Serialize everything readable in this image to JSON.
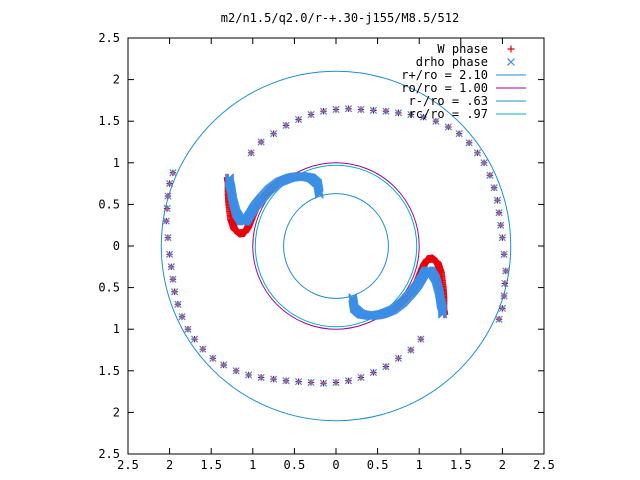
{
  "chart_data": {
    "type": "scatter",
    "title": "m2/n1.5/q2.0/r-+.30-j155/M8.5/512",
    "xlabel": "",
    "ylabel": "",
    "xlim": [
      -2.5,
      2.5
    ],
    "ylim": [
      -2.5,
      2.5
    ],
    "grid": false,
    "legend_position": "top-right",
    "x_tick_labels": [
      "2.5",
      "2",
      "1.5",
      "1",
      "0.5",
      "0",
      "0.5",
      "1",
      "1.5",
      "2",
      "2.5"
    ],
    "y_tick_labels": [
      "2.5",
      "2",
      "1.5",
      "1",
      "0.5",
      "0",
      "0.5",
      "1",
      "1.5",
      "2",
      "2.5"
    ],
    "series": [
      {
        "name": "W phase",
        "marker": "plus",
        "color": "#e8000b",
        "points": [
          [
            -1.96,
            0.88
          ],
          [
            -2.0,
            0.75
          ],
          [
            -2.02,
            0.6
          ],
          [
            -2.03,
            0.45
          ],
          [
            -2.04,
            0.3
          ],
          [
            -2.02,
            0.1
          ],
          [
            -2.0,
            -0.1
          ],
          [
            -1.98,
            -0.25
          ],
          [
            -1.96,
            -0.4
          ],
          [
            -1.94,
            -0.55
          ],
          [
            -1.9,
            -0.7
          ],
          [
            -1.85,
            -0.85
          ],
          [
            -1.78,
            -1.0
          ],
          [
            -1.7,
            -1.12
          ],
          [
            -1.6,
            -1.24
          ],
          [
            -1.48,
            -1.35
          ],
          [
            -1.35,
            -1.43
          ],
          [
            -1.2,
            -1.5
          ],
          [
            -1.05,
            -1.55
          ],
          [
            -0.9,
            -1.58
          ],
          [
            -0.75,
            -1.6
          ],
          [
            -0.6,
            -1.62
          ],
          [
            -0.45,
            -1.63
          ],
          [
            -0.3,
            -1.64
          ],
          [
            -0.15,
            -1.65
          ],
          [
            0.0,
            -1.64
          ],
          [
            0.15,
            -1.62
          ],
          [
            0.3,
            -1.58
          ],
          [
            0.45,
            -1.52
          ],
          [
            0.6,
            -1.45
          ],
          [
            0.75,
            -1.35
          ],
          [
            0.9,
            -1.25
          ],
          [
            1.02,
            -1.12
          ],
          [
            1.96,
            -0.88
          ],
          [
            2.0,
            -0.75
          ],
          [
            2.02,
            -0.6
          ],
          [
            2.03,
            -0.45
          ],
          [
            2.04,
            -0.3
          ],
          [
            2.02,
            -0.1
          ],
          [
            2.0,
            0.1
          ],
          [
            1.98,
            0.25
          ],
          [
            1.96,
            0.4
          ],
          [
            1.94,
            0.55
          ],
          [
            1.9,
            0.7
          ],
          [
            1.85,
            0.85
          ],
          [
            1.78,
            1.0
          ],
          [
            1.7,
            1.12
          ],
          [
            1.6,
            1.24
          ],
          [
            1.48,
            1.35
          ],
          [
            1.35,
            1.43
          ],
          [
            1.2,
            1.5
          ],
          [
            1.05,
            1.55
          ],
          [
            0.9,
            1.58
          ],
          [
            0.75,
            1.6
          ],
          [
            0.6,
            1.62
          ],
          [
            0.45,
            1.63
          ],
          [
            0.3,
            1.64
          ],
          [
            0.15,
            1.65
          ],
          [
            0.0,
            1.64
          ],
          [
            -0.15,
            1.62
          ],
          [
            -0.3,
            1.58
          ],
          [
            -0.45,
            1.52
          ],
          [
            -0.6,
            1.45
          ],
          [
            -0.75,
            1.35
          ],
          [
            -0.9,
            1.25
          ],
          [
            -1.02,
            1.12
          ]
        ],
        "dense_arms": [
          [
            [
              -0.28,
              0.78
            ],
            [
              -0.35,
              0.82
            ],
            [
              -0.45,
              0.84
            ],
            [
              -0.55,
              0.83
            ],
            [
              -0.65,
              0.79
            ],
            [
              -0.75,
              0.72
            ],
            [
              -0.85,
              0.62
            ],
            [
              -0.93,
              0.52
            ],
            [
              -0.98,
              0.42
            ],
            [
              -1.02,
              0.32
            ],
            [
              -1.06,
              0.22
            ],
            [
              -1.1,
              0.16
            ],
            [
              -1.16,
              0.15
            ],
            [
              -1.22,
              0.2
            ],
            [
              -1.26,
              0.32
            ],
            [
              -1.28,
              0.48
            ],
            [
              -1.29,
              0.62
            ],
            [
              -1.29,
              0.76
            ],
            [
              -1.3,
              0.82
            ]
          ],
          [
            [
              0.28,
              -0.78
            ],
            [
              0.35,
              -0.82
            ],
            [
              0.45,
              -0.84
            ],
            [
              0.55,
              -0.83
            ],
            [
              0.65,
              -0.79
            ],
            [
              0.75,
              -0.72
            ],
            [
              0.85,
              -0.62
            ],
            [
              0.93,
              -0.52
            ],
            [
              0.98,
              -0.42
            ],
            [
              1.02,
              -0.32
            ],
            [
              1.06,
              -0.22
            ],
            [
              1.1,
              -0.16
            ],
            [
              1.16,
              -0.15
            ],
            [
              1.22,
              -0.2
            ],
            [
              1.26,
              -0.32
            ],
            [
              1.28,
              -0.48
            ],
            [
              1.29,
              -0.62
            ],
            [
              1.29,
              -0.76
            ],
            [
              1.3,
              -0.82
            ]
          ]
        ]
      },
      {
        "name": "drho phase",
        "marker": "cross",
        "color": "#3b8ee6",
        "points": [
          [
            -1.96,
            0.88
          ],
          [
            -2.0,
            0.75
          ],
          [
            -2.02,
            0.6
          ],
          [
            -2.03,
            0.45
          ],
          [
            -2.04,
            0.3
          ],
          [
            -2.02,
            0.1
          ],
          [
            -2.0,
            -0.1
          ],
          [
            -1.98,
            -0.25
          ],
          [
            -1.96,
            -0.4
          ],
          [
            -1.94,
            -0.55
          ],
          [
            -1.9,
            -0.7
          ],
          [
            -1.85,
            -0.85
          ],
          [
            -1.78,
            -1.0
          ],
          [
            -1.7,
            -1.12
          ],
          [
            -1.6,
            -1.24
          ],
          [
            -1.48,
            -1.35
          ],
          [
            -1.35,
            -1.43
          ],
          [
            -1.2,
            -1.5
          ],
          [
            -1.05,
            -1.55
          ],
          [
            -0.9,
            -1.58
          ],
          [
            -0.75,
            -1.6
          ],
          [
            -0.6,
            -1.62
          ],
          [
            -0.45,
            -1.63
          ],
          [
            -0.3,
            -1.64
          ],
          [
            -0.15,
            -1.65
          ],
          [
            0.0,
            -1.64
          ],
          [
            0.15,
            -1.62
          ],
          [
            0.3,
            -1.58
          ],
          [
            0.45,
            -1.52
          ],
          [
            0.6,
            -1.45
          ],
          [
            0.75,
            -1.35
          ],
          [
            0.9,
            -1.25
          ],
          [
            1.02,
            -1.12
          ],
          [
            1.96,
            -0.88
          ],
          [
            2.0,
            -0.75
          ],
          [
            2.02,
            -0.6
          ],
          [
            2.03,
            -0.45
          ],
          [
            2.04,
            -0.3
          ],
          [
            2.02,
            -0.1
          ],
          [
            2.0,
            0.1
          ],
          [
            1.98,
            0.25
          ],
          [
            1.96,
            0.4
          ],
          [
            1.94,
            0.55
          ],
          [
            1.9,
            0.7
          ],
          [
            1.85,
            0.85
          ],
          [
            1.78,
            1.0
          ],
          [
            1.7,
            1.12
          ],
          [
            1.6,
            1.24
          ],
          [
            1.48,
            1.35
          ],
          [
            1.35,
            1.43
          ],
          [
            1.2,
            1.5
          ],
          [
            1.05,
            1.55
          ],
          [
            0.9,
            1.58
          ],
          [
            0.75,
            1.6
          ],
          [
            0.6,
            1.62
          ],
          [
            0.45,
            1.63
          ],
          [
            0.3,
            1.64
          ],
          [
            0.15,
            1.65
          ],
          [
            0.0,
            1.64
          ],
          [
            -0.15,
            1.62
          ],
          [
            -0.3,
            1.58
          ],
          [
            -0.45,
            1.52
          ],
          [
            -0.6,
            1.45
          ],
          [
            -0.75,
            1.35
          ],
          [
            -0.9,
            1.25
          ],
          [
            -1.02,
            1.12
          ]
        ],
        "dense_arms": [
          [
            [
              -0.2,
              0.62
            ],
            [
              -0.22,
              0.75
            ],
            [
              -0.3,
              0.82
            ],
            [
              -0.42,
              0.84
            ],
            [
              -0.55,
              0.82
            ],
            [
              -0.68,
              0.77
            ],
            [
              -0.8,
              0.68
            ],
            [
              -0.9,
              0.57
            ],
            [
              -0.98,
              0.47
            ],
            [
              -1.04,
              0.37
            ],
            [
              -1.08,
              0.3
            ],
            [
              -1.14,
              0.3
            ],
            [
              -1.2,
              0.4
            ],
            [
              -1.24,
              0.55
            ],
            [
              -1.26,
              0.68
            ],
            [
              -1.28,
              0.76
            ],
            [
              -1.28,
              0.82
            ]
          ],
          [
            [
              0.2,
              -0.62
            ],
            [
              0.22,
              -0.75
            ],
            [
              0.3,
              -0.82
            ],
            [
              0.42,
              -0.84
            ],
            [
              0.55,
              -0.82
            ],
            [
              0.68,
              -0.77
            ],
            [
              0.8,
              -0.68
            ],
            [
              0.9,
              -0.57
            ],
            [
              0.98,
              -0.47
            ],
            [
              1.04,
              -0.37
            ],
            [
              1.08,
              -0.3
            ],
            [
              1.14,
              -0.3
            ],
            [
              1.2,
              -0.4
            ],
            [
              1.24,
              -0.55
            ],
            [
              1.26,
              -0.68
            ],
            [
              1.28,
              -0.76
            ],
            [
              1.28,
              -0.82
            ]
          ]
        ]
      }
    ],
    "circles": [
      {
        "name": "r+/ro = 2.10",
        "r": 2.1,
        "color": "#1f8fd0"
      },
      {
        "name": "ro/ro = 1.00",
        "r": 1.0,
        "color": "#a000a0"
      },
      {
        "name": "r-/ro = .63",
        "r": 0.63,
        "color": "#1f8fd0"
      },
      {
        "name": "rc/ro = .97",
        "r": 0.97,
        "color": "#00b0c8"
      }
    ]
  }
}
